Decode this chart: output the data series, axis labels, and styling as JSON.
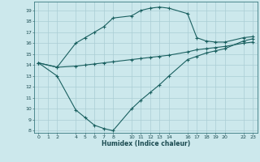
{
  "xlabel": "Humidex (Indice chaleur)",
  "bg_color": "#cce8ec",
  "grid_color": "#aacdd4",
  "line_color": "#1a6060",
  "xlim": [
    -0.5,
    23.5
  ],
  "ylim": [
    7.8,
    19.8
  ],
  "yticks": [
    8,
    9,
    10,
    11,
    12,
    13,
    14,
    15,
    16,
    17,
    18,
    19
  ],
  "xticks": [
    0,
    1,
    2,
    4,
    5,
    6,
    7,
    8,
    10,
    11,
    12,
    13,
    14,
    16,
    17,
    18,
    19,
    20,
    22,
    23
  ],
  "curve1_x": [
    0,
    2,
    4,
    5,
    6,
    7,
    8,
    10,
    11,
    12,
    13,
    14,
    16,
    17,
    18,
    19,
    20,
    22,
    23
  ],
  "curve1_y": [
    14.2,
    13.8,
    16.0,
    16.5,
    17.0,
    17.5,
    18.3,
    18.5,
    19.0,
    19.2,
    19.3,
    19.2,
    18.7,
    16.5,
    16.2,
    16.1,
    16.1,
    16.5,
    16.6
  ],
  "curve2_x": [
    0,
    2,
    4,
    5,
    6,
    7,
    8,
    10,
    11,
    12,
    13,
    14,
    16,
    17,
    18,
    19,
    20,
    22,
    23
  ],
  "curve2_y": [
    14.2,
    13.8,
    13.9,
    14.0,
    14.1,
    14.2,
    14.3,
    14.5,
    14.6,
    14.7,
    14.8,
    14.9,
    15.2,
    15.4,
    15.5,
    15.6,
    15.7,
    16.0,
    16.1
  ],
  "curve3_x": [
    0,
    2,
    4,
    5,
    6,
    7,
    8,
    10,
    11,
    12,
    13,
    14,
    16,
    17,
    18,
    19,
    20,
    22,
    23
  ],
  "curve3_y": [
    14.2,
    13.0,
    9.9,
    9.2,
    8.5,
    8.2,
    8.0,
    10.0,
    10.8,
    11.5,
    12.2,
    13.0,
    14.5,
    14.8,
    15.1,
    15.3,
    15.5,
    16.2,
    16.4
  ]
}
